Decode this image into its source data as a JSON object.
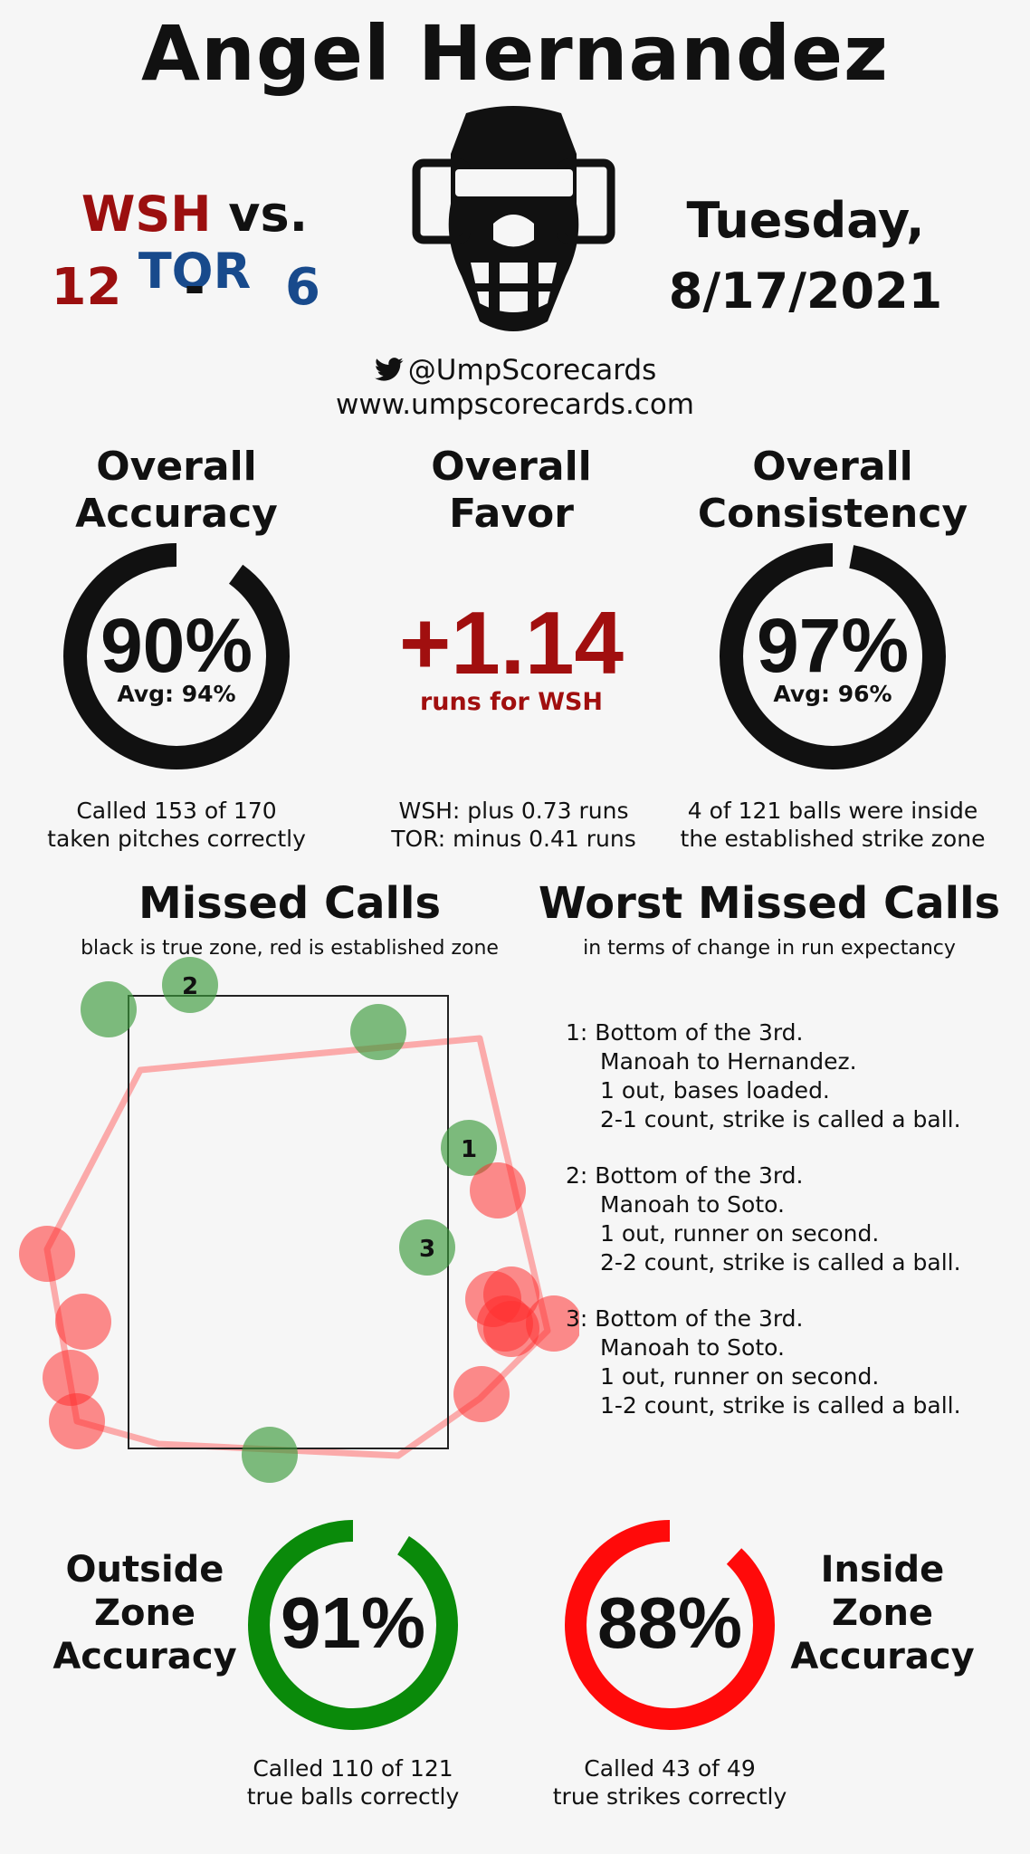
{
  "umpire_name": "Angel Hernandez",
  "game": {
    "home_team": "WSH",
    "vs_label": "vs.",
    "away_team": "TOR",
    "home_score": "12",
    "score_sep": "-",
    "away_score": "6",
    "date_line1": "Tuesday,",
    "date_line2": "8/17/2021"
  },
  "social": {
    "handle": "@UmpScorecards",
    "website": "www.umpscorecards.com"
  },
  "overall_accuracy": {
    "title_line1": "Overall",
    "title_line2": "Accuracy",
    "value": "90%",
    "fraction": 0.9,
    "avg": "Avg: 94%",
    "caption_line1": "Called 153 of 170",
    "caption_line2": "taken pitches correctly"
  },
  "overall_favor": {
    "title_line1": "Overall",
    "title_line2": "Favor",
    "value": "+1.14",
    "subtitle": "runs for WSH",
    "caption_line1": "WSH: plus 0.73 runs",
    "caption_line2": "TOR: minus 0.41 runs"
  },
  "overall_consistency": {
    "title_line1": "Overall",
    "title_line2": "Consistency",
    "value": "97%",
    "fraction": 0.97,
    "avg": "Avg: 96%",
    "caption_line1": "4 of 121 balls were inside",
    "caption_line2": "the established strike zone"
  },
  "missed_calls": {
    "title": "Missed Calls",
    "subtitle": "black is true zone, red is established zone",
    "labels": [
      "1",
      "2",
      "3"
    ]
  },
  "worst_missed_calls": {
    "title": "Worst Missed Calls",
    "subtitle": "in terms of change in run expectancy",
    "items": [
      {
        "line1": "1: Bottom of the 3rd.",
        "line2": "Manoah to Hernandez.",
        "line3": "1 out, bases loaded.",
        "line4": "2-1 count, strike is called a ball."
      },
      {
        "line1": "2: Bottom of the 3rd.",
        "line2": "Manoah to Soto.",
        "line3": "1 out, runner on second.",
        "line4": "2-2 count, strike is called a ball."
      },
      {
        "line1": "3: Bottom of the 3rd.",
        "line2": "Manoah to Soto.",
        "line3": "1 out, runner on second.",
        "line4": "1-2 count, strike is called a ball."
      }
    ]
  },
  "outside_zone": {
    "title_line1": "Outside",
    "title_line2": "Zone",
    "title_line3": "Accuracy",
    "value": "91%",
    "fraction": 0.91,
    "color": "#0a8a0a",
    "caption_line1": "Called 110 of 121",
    "caption_line2": "true balls correctly"
  },
  "inside_zone": {
    "title_line1": "Inside",
    "title_line2": "Zone",
    "title_line3": "Accuracy",
    "value": "88%",
    "fraction": 0.88,
    "color": "#ff0a0a",
    "caption_line1": "Called 43 of 49",
    "caption_line2": "true strikes correctly"
  },
  "icons": {
    "umpire_mask": "umpire-mask-icon",
    "twitter": "twitter-bird-icon"
  }
}
